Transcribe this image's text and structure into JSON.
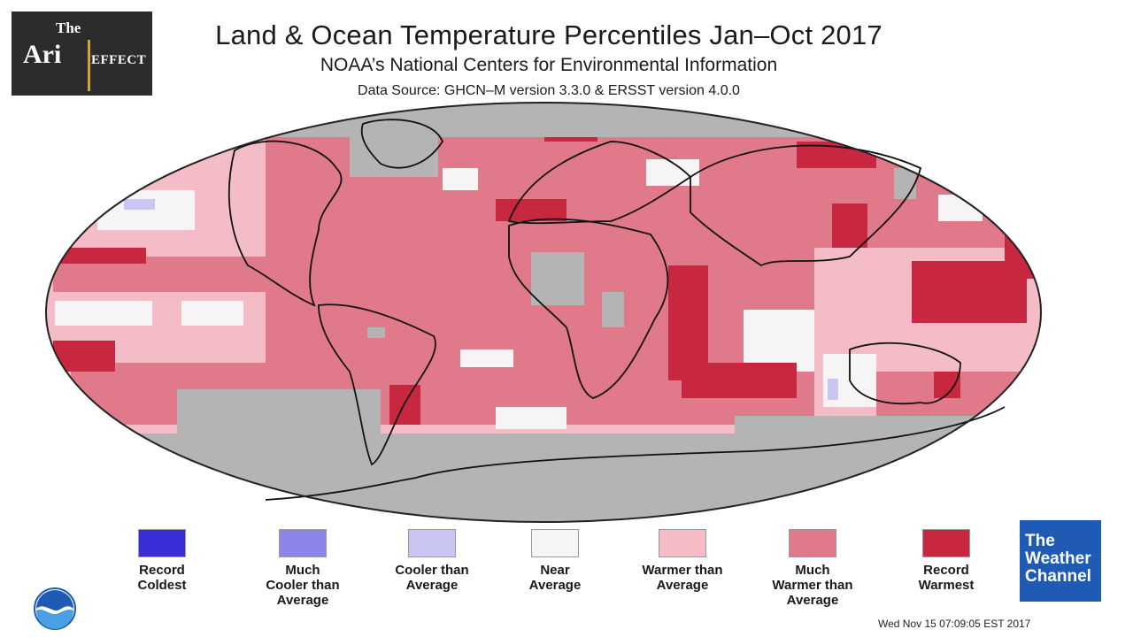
{
  "header": {
    "title": "Land & Ocean Temperature Percentiles Jan–Oct 2017",
    "subtitle": "NOAA’s National Centers for Environmental Information",
    "source": "Data Source: GHCN–M version 3.3.0 & ERSST version 4.0.0"
  },
  "branding": {
    "ari_logo": {
      "the": "The",
      "name": "Ari",
      "effect": "EFFECT"
    },
    "weather_channel": {
      "line1": "The",
      "line2": "Weather",
      "line3": "Channel",
      "color": "#1f5bb5"
    },
    "noaa_icon": "noaa-logo-icon"
  },
  "map": {
    "projection": "robinson-like ellipse",
    "colors": {
      "no_data": "#b4b4b4",
      "record_warmest": "#c8283f",
      "much_warmer": "#e07a8a",
      "warmer": "#f4bcc7",
      "near": "#f7f4f5",
      "cooler": "#c9c6f4",
      "much_cooler": "#8c84e6",
      "record_coldest": "#3a2ed6",
      "coastline": "#111111"
    }
  },
  "legend": {
    "items": [
      {
        "label": "Record\nColdest",
        "color": "#3a2ed6"
      },
      {
        "label": "Much\nCooler than\nAverage",
        "color": "#8c84e6"
      },
      {
        "label": "Cooler than\nAverage",
        "color": "#c9c6f4"
      },
      {
        "label": "Near\nAverage",
        "color": "#f7f4f5"
      },
      {
        "label": "Warmer than\nAverage",
        "color": "#f4bcc7"
      },
      {
        "label": "Much\nWarmer than\nAverage",
        "color": "#e07a8a"
      },
      {
        "label": "Record\nWarmest",
        "color": "#c8283f"
      }
    ]
  },
  "timestamp": "Wed Nov 15 07:09:05 EST 2017"
}
